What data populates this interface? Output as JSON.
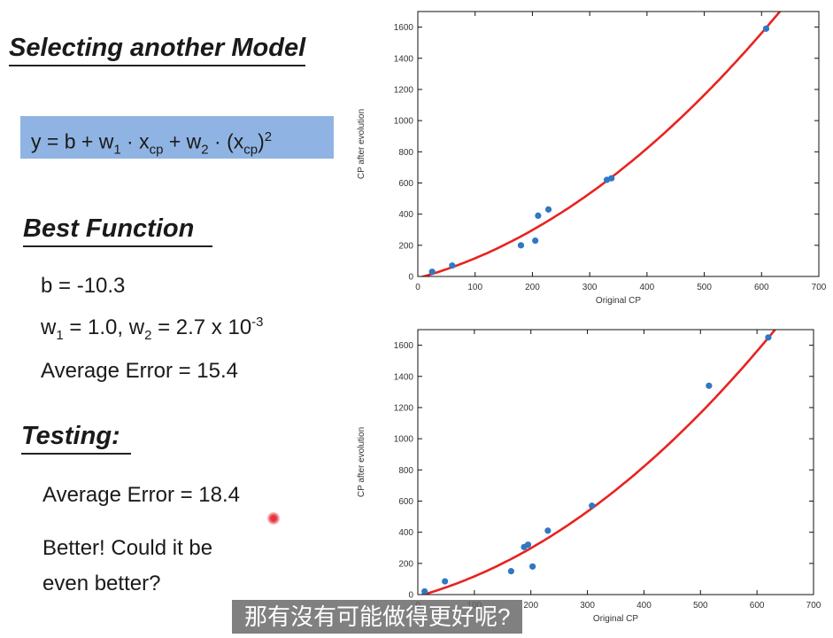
{
  "slide": {
    "title": "Selecting another Model",
    "formula": {
      "y_eq": "y = b + w",
      "w1_sub": "1",
      "dot1": " · x",
      "x_sub": "cp",
      "plus_w2": " + w",
      "w2_sub": "2",
      "dot2": " · (x",
      "x_sub2": "cp",
      "close": ")",
      "sq": "2"
    },
    "best_function_heading": "Best Function",
    "b_line": "b = -10.3",
    "w_line": {
      "w1_prefix": "w",
      "w1_sub": "1",
      "w1_val": " = 1.0, w",
      "w2_sub": "2",
      "w2_val": " = 2.7 x 10",
      "exp": "-3"
    },
    "avg_error_train": "Average Error = 15.4",
    "testing_heading": "Testing:",
    "avg_error_test": "Average Error = 18.4",
    "comment_line1": "Better! Could it be",
    "comment_line2": "even better?"
  },
  "subtitle": "那有沒有可能做得更好呢?",
  "colors": {
    "curve": "#e8231f",
    "points": "#2f78c4",
    "highlight": "#8fb4e3"
  },
  "chart_data": [
    {
      "type": "scatter",
      "title": "",
      "xlabel": "Original CP",
      "ylabel": "CP after evolution",
      "xlim": [
        0,
        700
      ],
      "ylim": [
        0,
        1700
      ],
      "xticks": [
        0,
        100,
        200,
        300,
        400,
        500,
        600,
        700
      ],
      "yticks": [
        0,
        200,
        400,
        600,
        800,
        1000,
        1200,
        1400,
        1600
      ],
      "grid": false,
      "points": {
        "x": [
          25,
          60,
          180,
          205,
          210,
          228,
          330,
          338,
          608
        ],
        "y": [
          30,
          70,
          200,
          230,
          390,
          430,
          620,
          630,
          1590
        ]
      },
      "curve": {
        "b": -10.3,
        "w1": 1.0,
        "w2": 0.0027
      }
    },
    {
      "type": "scatter",
      "title": "",
      "xlabel": "Original CP",
      "ylabel": "CP after evolution",
      "xlim": [
        0,
        700
      ],
      "ylim": [
        0,
        1700
      ],
      "xticks": [
        0,
        100,
        200,
        300,
        400,
        500,
        600,
        700
      ],
      "yticks": [
        0,
        200,
        400,
        600,
        800,
        1000,
        1200,
        1400,
        1600
      ],
      "grid": false,
      "points": {
        "x": [
          12,
          48,
          165,
          188,
          195,
          203,
          230,
          308,
          515,
          620
        ],
        "y": [
          20,
          85,
          150,
          305,
          320,
          180,
          410,
          570,
          1340,
          1650
        ]
      },
      "curve": {
        "b": -10.3,
        "w1": 1.0,
        "w2": 0.0027
      }
    }
  ]
}
